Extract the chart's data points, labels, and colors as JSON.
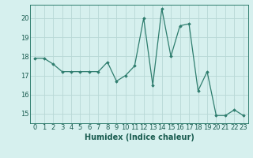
{
  "x": [
    0,
    1,
    2,
    3,
    4,
    5,
    6,
    7,
    8,
    9,
    10,
    11,
    12,
    13,
    14,
    15,
    16,
    17,
    18,
    19,
    20,
    21,
    22,
    23
  ],
  "y": [
    17.9,
    17.9,
    17.6,
    17.2,
    17.2,
    17.2,
    17.2,
    17.2,
    17.7,
    16.7,
    17.0,
    17.5,
    20.0,
    16.5,
    20.5,
    18.0,
    19.6,
    19.7,
    16.2,
    17.2,
    14.9,
    14.9,
    15.2,
    14.9
  ],
  "line_color": "#2e7d6e",
  "marker": "D",
  "marker_size": 1.8,
  "linewidth": 0.9,
  "bg_color": "#d6f0ee",
  "grid_color": "#b8d8d5",
  "axis_color": "#2e7d6e",
  "xlabel": "Humidex (Indice chaleur)",
  "xlabel_fontsize": 7,
  "xlabel_color": "#1a5c50",
  "tick_color": "#1a5c50",
  "tick_fontsize": 6,
  "ylim": [
    14.5,
    20.7
  ],
  "xlim": [
    -0.5,
    23.5
  ],
  "yticks": [
    15,
    16,
    17,
    18,
    19,
    20
  ],
  "xticks": [
    0,
    1,
    2,
    3,
    4,
    5,
    6,
    7,
    8,
    9,
    10,
    11,
    12,
    13,
    14,
    15,
    16,
    17,
    18,
    19,
    20,
    21,
    22,
    23
  ]
}
